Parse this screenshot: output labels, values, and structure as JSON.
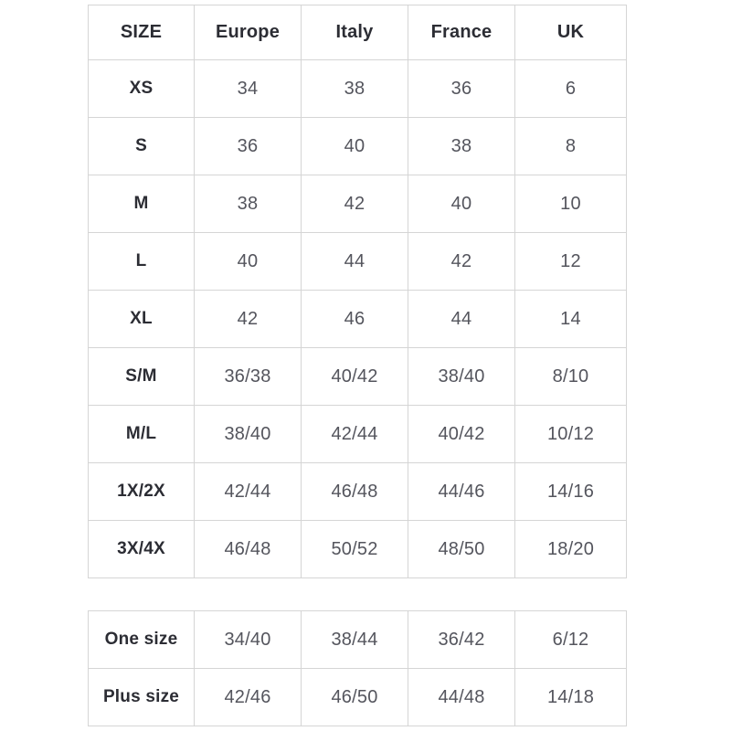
{
  "colors": {
    "background": "#ffffff",
    "border": "#d5d5d5",
    "heading_text": "#2c2d34",
    "value_text": "#54555d"
  },
  "size_chart": {
    "columns": [
      "SIZE",
      "Europe",
      "Italy",
      "France",
      "UK"
    ],
    "rows": [
      {
        "size": "XS",
        "values": [
          "34",
          "38",
          "36",
          "6"
        ]
      },
      {
        "size": "S",
        "values": [
          "36",
          "40",
          "38",
          "8"
        ]
      },
      {
        "size": "M",
        "values": [
          "38",
          "42",
          "40",
          "10"
        ]
      },
      {
        "size": "L",
        "values": [
          "40",
          "44",
          "42",
          "12"
        ]
      },
      {
        "size": "XL",
        "values": [
          "42",
          "46",
          "44",
          "14"
        ]
      },
      {
        "size": "S/M",
        "values": [
          "36/38",
          "40/42",
          "38/40",
          "8/10"
        ]
      },
      {
        "size": "M/L",
        "values": [
          "38/40",
          "42/44",
          "40/42",
          "10/12"
        ]
      },
      {
        "size": "1X/2X",
        "values": [
          "42/44",
          "46/48",
          "44/46",
          "14/16"
        ]
      },
      {
        "size": "3X/4X",
        "values": [
          "46/48",
          "50/52",
          "48/50",
          "18/20"
        ]
      }
    ]
  },
  "special_sizes": {
    "rows": [
      {
        "size": "One size",
        "values": [
          "34/40",
          "38/44",
          "36/42",
          "6/12"
        ]
      },
      {
        "size": "Plus size",
        "values": [
          "42/46",
          "46/50",
          "44/48",
          "14/18"
        ]
      }
    ]
  }
}
